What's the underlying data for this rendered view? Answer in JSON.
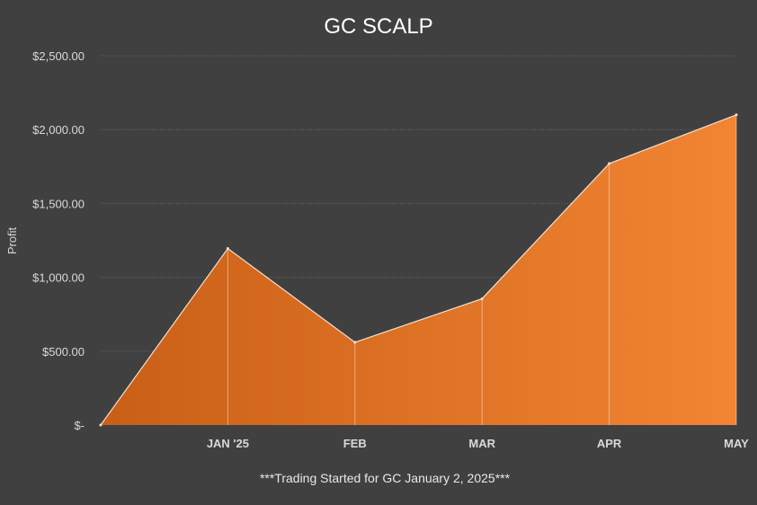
{
  "chart_data": {
    "type": "area",
    "title": "GC SCALP",
    "ylabel": "Profit",
    "xlabel": "",
    "footnote": "***Trading Started for GC January 2, 2025***",
    "categories": [
      "",
      "JAN '25",
      "FEB",
      "MAR",
      "APR",
      "MAY"
    ],
    "values": [
      0,
      1195,
      560,
      855,
      1770,
      2100
    ],
    "ylim": [
      0,
      2500
    ],
    "yticks": [
      0,
      500,
      1000,
      1500,
      2000,
      2500
    ],
    "ytick_labels": [
      "$-",
      "$500.00",
      "$1,000.00",
      "$1,500.00",
      "$2,000.00",
      "$2,500.00"
    ],
    "grid": true,
    "colors": {
      "fill_start": "#c95f17",
      "fill_end": "#f28533",
      "line": "#f3e0d0",
      "background": "#404040"
    }
  }
}
